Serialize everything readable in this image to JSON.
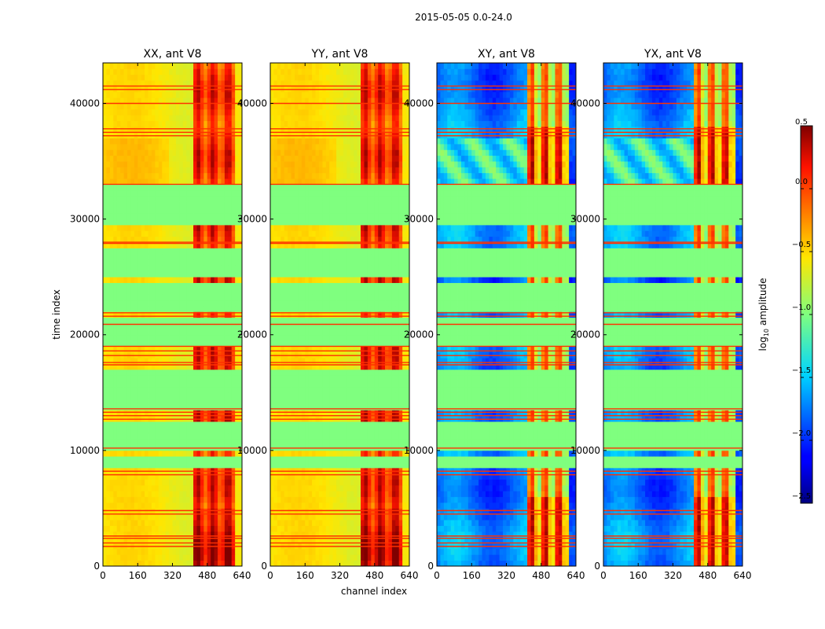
{
  "chart_data": {
    "type": "heatmap",
    "suptitle": "2015-05-05 0.0-24.0",
    "xlabel": "channel index",
    "ylabel": "time index",
    "xlim": [
      0,
      640
    ],
    "ylim": [
      0,
      43500
    ],
    "x_ticks": [
      0,
      160,
      320,
      480,
      640
    ],
    "y_ticks": [
      0,
      10000,
      20000,
      30000,
      40000
    ],
    "panels": [
      {
        "title": "XX, ant V8",
        "kind": "parallel"
      },
      {
        "title": "YY, ant V8",
        "kind": "parallel"
      },
      {
        "title": "XY, ant V8",
        "kind": "cross"
      },
      {
        "title": "YX, ant V8",
        "kind": "cross"
      }
    ],
    "colorbar": {
      "label": "log10 amplitude",
      "label_main": "log",
      "label_sub": "10",
      "label_rest": " amplitude",
      "range": [
        -2.5,
        0.5
      ],
      "ticks": [
        0.5,
        0.0,
        -0.5,
        -1.0,
        -1.5,
        -2.0,
        -2.5
      ],
      "tick_labels": [
        "0.5",
        "0.0",
        "−0.5",
        "−1.0",
        "−1.5",
        "−2.0",
        "−2.5"
      ]
    },
    "flagged_time_ranges": [
      [
        29500,
        32800
      ],
      [
        24800,
        27700
      ],
      [
        22200,
        24700
      ],
      [
        18900,
        21500
      ],
      [
        15100,
        17200
      ],
      [
        13700,
        15100
      ],
      [
        10200,
        12500
      ],
      [
        8400,
        9700
      ]
    ],
    "red_line_times": [
      41500,
      41200,
      40000,
      37800,
      37500,
      37200,
      33000,
      28000,
      27900,
      21900,
      21600,
      20900,
      19000,
      18600,
      18200,
      17600,
      17400,
      13600,
      13300,
      13000,
      12700,
      10200,
      8200,
      7900,
      4800,
      4500,
      2600,
      2400,
      2000,
      1700
    ],
    "flagged_level": -1.0,
    "rfi_channel_range": [
      420,
      600
    ]
  }
}
